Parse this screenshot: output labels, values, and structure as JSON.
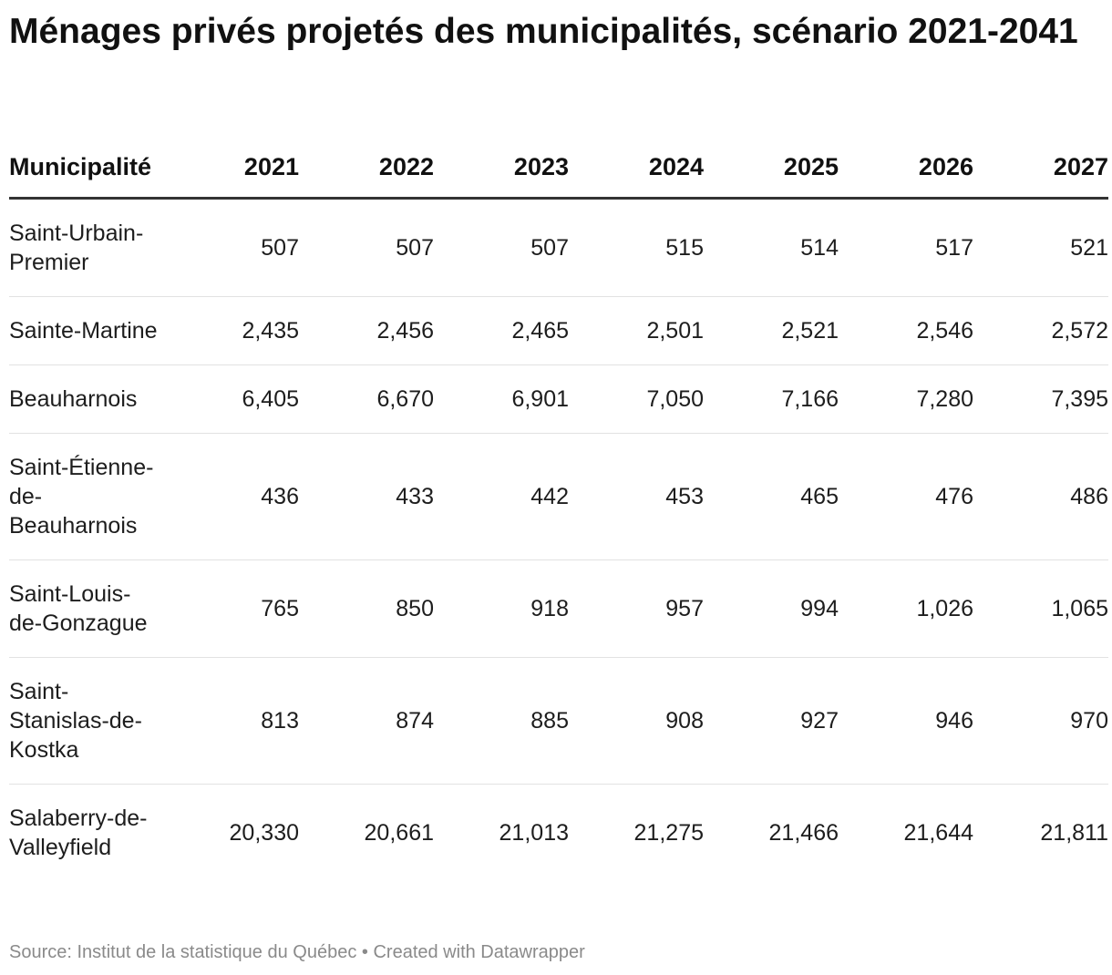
{
  "title": "Ménages privés projetés des municipalités, scénario 2021-2041",
  "table": {
    "header": [
      "Municipalité",
      "2021",
      "2022",
      "2023",
      "2024",
      "2025",
      "2026",
      "2027"
    ],
    "rows": [
      [
        "Saint-Urbain-Premier",
        "507",
        "507",
        "507",
        "515",
        "514",
        "517",
        "521"
      ],
      [
        "Sainte-Martine",
        "2,435",
        "2,456",
        "2,465",
        "2,501",
        "2,521",
        "2,546",
        "2,572"
      ],
      [
        "Beauharnois",
        "6,405",
        "6,670",
        "6,901",
        "7,050",
        "7,166",
        "7,280",
        "7,395"
      ],
      [
        "Saint-Étienne-de-Beauharnois",
        "436",
        "433",
        "442",
        "453",
        "465",
        "476",
        "486"
      ],
      [
        "Saint-Louis-de-Gonzague",
        "765",
        "850",
        "918",
        "957",
        "994",
        "1,026",
        "1,065"
      ],
      [
        "Saint-Stanislas-de-Kostka",
        "813",
        "874",
        "885",
        "908",
        "927",
        "946",
        "970"
      ],
      [
        "Salaberry-de-Valleyfield",
        "20,330",
        "20,661",
        "21,013",
        "21,275",
        "21,466",
        "21,644",
        "21,811"
      ]
    ]
  },
  "footer": {
    "source": "Source: Institut de la statistique du Québec",
    "credit": "Created with Datawrapper"
  }
}
